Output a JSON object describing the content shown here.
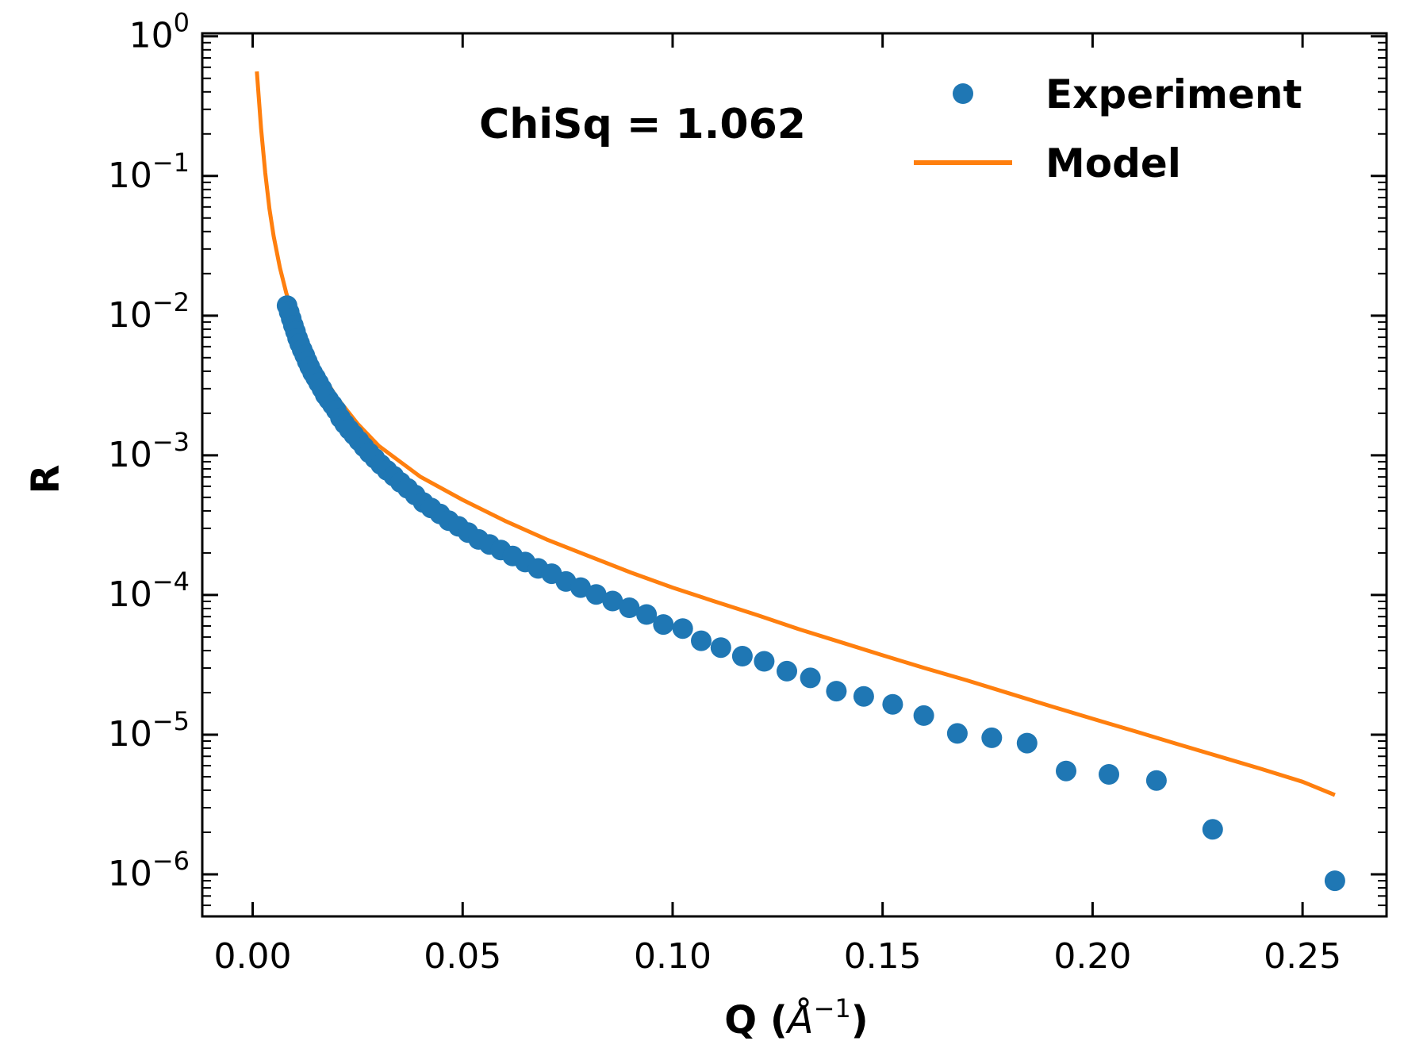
{
  "chart_data": {
    "type": "scatter",
    "xlabel": "Q (",
    "xlabel_unit_symbol": "Å",
    "xlabel_unit_exp": "−1",
    "xlabel_close": ")",
    "ylabel": "R",
    "xlim": [
      -0.012,
      0.27
    ],
    "ylim": [
      5e-07,
      1.05
    ],
    "yscale": "log",
    "grid": false,
    "legend_placement": "top-right",
    "x_ticks": [
      {
        "value": 0.0,
        "label": "0.00"
      },
      {
        "value": 0.05,
        "label": "0.05"
      },
      {
        "value": 0.1,
        "label": "0.10"
      },
      {
        "value": 0.15,
        "label": "0.15"
      },
      {
        "value": 0.2,
        "label": "0.20"
      },
      {
        "value": 0.25,
        "label": "0.25"
      }
    ],
    "y_ticks": [
      {
        "value": 1,
        "base": "10",
        "exp": "0"
      },
      {
        "value": 0.1,
        "base": "10",
        "exp": "−1"
      },
      {
        "value": 0.01,
        "base": "10",
        "exp": "−2"
      },
      {
        "value": 0.001,
        "base": "10",
        "exp": "−3"
      },
      {
        "value": 0.0001,
        "base": "10",
        "exp": "−4"
      },
      {
        "value": 1e-05,
        "base": "10",
        "exp": "−5"
      },
      {
        "value": 1e-06,
        "base": "10",
        "exp": "−6"
      }
    ],
    "annotation": "ChiSq = 1.062",
    "series": [
      {
        "name": "Experiment",
        "kind": "scatter",
        "color": "#1f77b4",
        "points": [
          [
            0.0082,
            0.0118
          ],
          [
            0.0087,
            0.0106
          ],
          [
            0.0092,
            0.0095
          ],
          [
            0.0097,
            0.0085
          ],
          [
            0.0102,
            0.0077
          ],
          [
            0.0107,
            0.0069
          ],
          [
            0.0112,
            0.0063
          ],
          [
            0.0118,
            0.0057
          ],
          [
            0.0124,
            0.0052
          ],
          [
            0.013,
            0.0047
          ],
          [
            0.0136,
            0.0043
          ],
          [
            0.0143,
            0.0039
          ],
          [
            0.015,
            0.0036
          ],
          [
            0.0157,
            0.0033
          ],
          [
            0.0165,
            0.003
          ],
          [
            0.0173,
            0.0027
          ],
          [
            0.0181,
            0.0025
          ],
          [
            0.019,
            0.0023
          ],
          [
            0.0199,
            0.0021
          ],
          [
            0.0209,
            0.00185
          ],
          [
            0.0219,
            0.00168
          ],
          [
            0.023,
            0.00153
          ],
          [
            0.0241,
            0.0014
          ],
          [
            0.0253,
            0.00127
          ],
          [
            0.0265,
            0.00115
          ],
          [
            0.0278,
            0.00104
          ],
          [
            0.0291,
            0.00095
          ],
          [
            0.0305,
            0.00086
          ],
          [
            0.032,
            0.00078
          ],
          [
            0.0336,
            0.00071
          ],
          [
            0.0352,
            0.00064
          ],
          [
            0.0369,
            0.00058
          ],
          [
            0.0387,
            0.00052
          ],
          [
            0.0406,
            0.00046
          ],
          [
            0.0425,
            0.00042
          ],
          [
            0.0446,
            0.00038
          ],
          [
            0.0467,
            0.00034
          ],
          [
            0.049,
            0.00031
          ],
          [
            0.0513,
            0.00028
          ],
          [
            0.0538,
            0.00025
          ],
          [
            0.0564,
            0.00023
          ],
          [
            0.0591,
            0.00021
          ],
          [
            0.0619,
            0.00019
          ],
          [
            0.0649,
            0.000172
          ],
          [
            0.068,
            0.000155
          ],
          [
            0.0712,
            0.000142
          ],
          [
            0.0746,
            0.000125
          ],
          [
            0.0781,
            0.000113
          ],
          [
            0.0818,
            0.000101
          ],
          [
            0.0857,
            9.05e-05
          ],
          [
            0.0897,
            8.1e-05
          ],
          [
            0.0938,
            7.25e-05
          ],
          [
            0.0978,
            6.15e-05
          ],
          [
            0.1024,
            5.75e-05
          ],
          [
            0.1068,
            4.7e-05
          ],
          [
            0.1115,
            4.2e-05
          ],
          [
            0.1166,
            3.65e-05
          ],
          [
            0.1218,
            3.35e-05
          ],
          [
            0.1272,
            2.85e-05
          ],
          [
            0.1328,
            2.55e-05
          ],
          [
            0.139,
            2.05e-05
          ],
          [
            0.1455,
            1.88e-05
          ],
          [
            0.1524,
            1.65e-05
          ],
          [
            0.1598,
            1.37e-05
          ],
          [
            0.1678,
            1.02e-05
          ],
          [
            0.176,
            9.5e-06
          ],
          [
            0.1844,
            8.7e-06
          ],
          [
            0.1937,
            5.5e-06
          ],
          [
            0.2039,
            5.2e-06
          ],
          [
            0.2152,
            4.7e-06
          ],
          [
            0.2286,
            2.1e-06
          ],
          [
            0.2577,
            9e-07
          ]
        ]
      },
      {
        "name": "Model",
        "kind": "line",
        "color": "#ff7f0e",
        "points": [
          [
            0.001,
            0.56
          ],
          [
            0.002,
            0.22
          ],
          [
            0.003,
            0.105
          ],
          [
            0.004,
            0.058
          ],
          [
            0.005,
            0.037
          ],
          [
            0.0065,
            0.022
          ],
          [
            0.008,
            0.0145
          ],
          [
            0.01,
            0.0095
          ],
          [
            0.012,
            0.0068
          ],
          [
            0.015,
            0.0045
          ],
          [
            0.02,
            0.0026
          ],
          [
            0.025,
            0.00168
          ],
          [
            0.03,
            0.00117
          ],
          [
            0.04,
            0.0007
          ],
          [
            0.05,
            0.00048
          ],
          [
            0.06,
            0.00034
          ],
          [
            0.07,
            0.00025
          ],
          [
            0.08,
            0.00019
          ],
          [
            0.09,
            0.000145
          ],
          [
            0.1,
            0.000113
          ],
          [
            0.11,
            9e-05
          ],
          [
            0.12,
            7.2e-05
          ],
          [
            0.13,
            5.7e-05
          ],
          [
            0.14,
            4.6e-05
          ],
          [
            0.15,
            3.7e-05
          ],
          [
            0.16,
            3e-05
          ],
          [
            0.17,
            2.45e-05
          ],
          [
            0.18,
            1.98e-05
          ],
          [
            0.19,
            1.6e-05
          ],
          [
            0.2,
            1.3e-05
          ],
          [
            0.21,
            1.06e-05
          ],
          [
            0.22,
            8.6e-06
          ],
          [
            0.23,
            7e-06
          ],
          [
            0.24,
            5.7e-06
          ],
          [
            0.25,
            4.6e-06
          ],
          [
            0.2577,
            3.7e-06
          ]
        ]
      }
    ]
  }
}
